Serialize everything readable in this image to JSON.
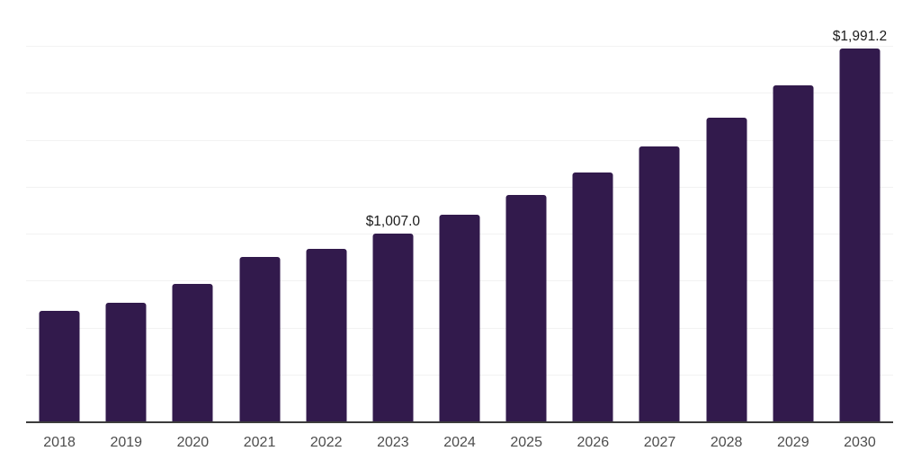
{
  "page": {
    "background": "#ffffff"
  },
  "chart_data": {
    "type": "bar",
    "title": "",
    "xlabel": "",
    "ylabel": "",
    "categories": [
      "2018",
      "2019",
      "2020",
      "2021",
      "2022",
      "2023",
      "2024",
      "2025",
      "2026",
      "2027",
      "2028",
      "2029",
      "2030"
    ],
    "values": [
      596,
      639,
      736,
      881,
      925,
      1007.0,
      1104,
      1211,
      1332,
      1471,
      1624,
      1797,
      1991.2
    ],
    "data_labels": {
      "2023": "$1,007.0",
      "2030": "$1,991.2"
    },
    "ylim": [
      0,
      2250
    ],
    "gridline_step": 250,
    "grid": "horizontal-only",
    "legend": "none",
    "y_tick_labels_visible": false,
    "bar_color": "#321a4c",
    "gridline_color": "#f2f2f2",
    "axis_line_color": "#3c3c3c",
    "data_label_color": "#1b1b1b",
    "tick_label_color": "#4d4d4d"
  }
}
